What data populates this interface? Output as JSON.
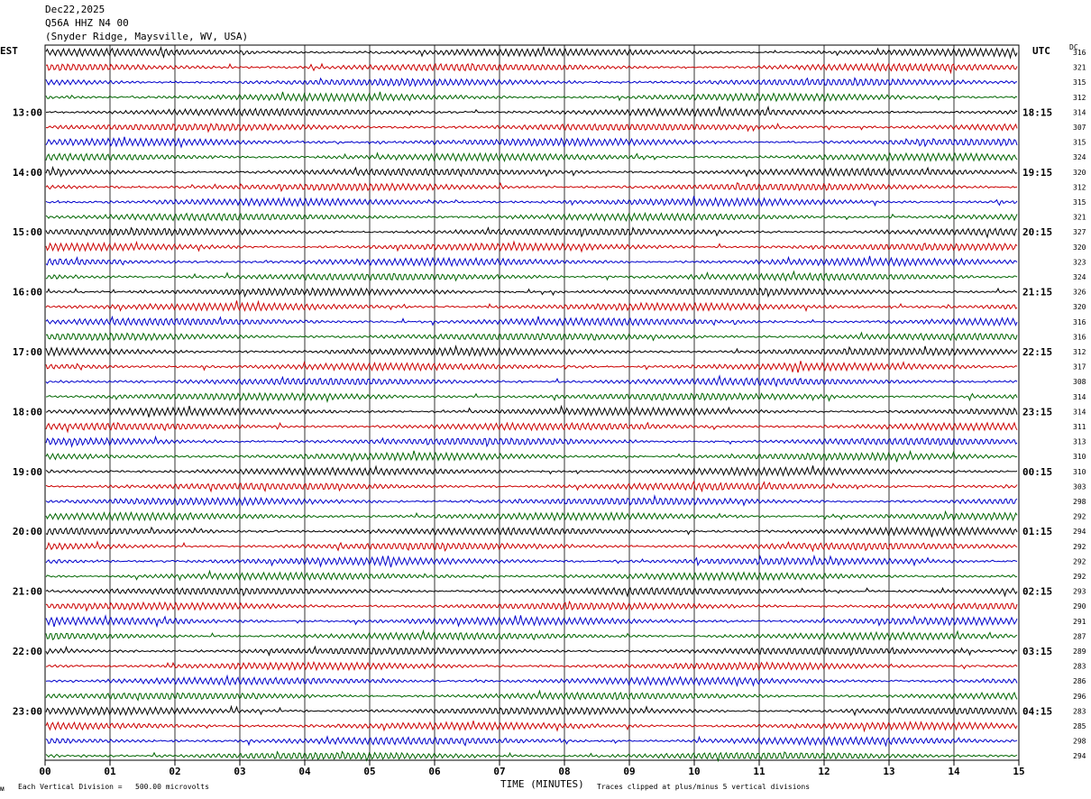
{
  "header": {
    "date": "Dec22,2025",
    "station": "Q56A HHZ N4 00",
    "location": "(Snyder Ridge, Maysville, WV, USA)"
  },
  "axes": {
    "left_label": "EST",
    "right_label": "UTC",
    "dc_label": "DC",
    "x_title": "TIME (MINUTES)",
    "footer_left": "Each Vertical Division =   500.00 microvolts",
    "footer_right": "Traces clipped at plus/minus 5 vertical divisions",
    "corner_mark": "ᴍ"
  },
  "colors": {
    "trace_cycle": [
      "#000000",
      "#cc0000",
      "#0000cc",
      "#006600"
    ],
    "grid": "#000000"
  },
  "chart_data": {
    "type": "line",
    "title": "",
    "x_ticks": [
      "00",
      "01",
      "02",
      "03",
      "04",
      "05",
      "06",
      "07",
      "08",
      "09",
      "10",
      "11",
      "12",
      "13",
      "14",
      "15"
    ],
    "x_range": [
      0,
      15
    ],
    "trace_interval_minutes": 15,
    "est_hour_labels": [
      "13:00",
      "14:00",
      "15:00",
      "16:00",
      "17:00",
      "18:00",
      "19:00",
      "20:00",
      "21:00",
      "22:00",
      "23:00"
    ],
    "utc_hour_labels": [
      "18:15",
      "19:15",
      "20:15",
      "21:15",
      "22:15",
      "23:15",
      "00:15",
      "01:15",
      "02:15",
      "03:15",
      "04:15"
    ],
    "dc_offsets": [
      316,
      321,
      315,
      312,
      314,
      307,
      315,
      324,
      320,
      312,
      315,
      321,
      327,
      320,
      323,
      324,
      326,
      320,
      316,
      316,
      312,
      317,
      308,
      314,
      314,
      311,
      313,
      310,
      310,
      303,
      298,
      292,
      294,
      292,
      292,
      292,
      293,
      290,
      291,
      287,
      289,
      283,
      286,
      296,
      283,
      285,
      298,
      294
    ],
    "trace_count": 48,
    "first_labeled_trace_index": 4,
    "traces_per_hour": 4
  }
}
